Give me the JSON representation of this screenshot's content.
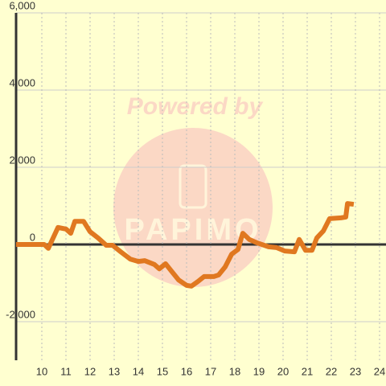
{
  "chart_data": {
    "type": "line",
    "x": [
      8.93,
      10.1,
      10.27,
      10.67,
      11.0,
      11.2,
      11.37,
      11.73,
      12.0,
      12.33,
      12.67,
      12.93,
      13.27,
      13.67,
      14.0,
      14.27,
      14.67,
      14.87,
      15.13,
      15.4,
      15.67,
      16.0,
      16.2,
      16.47,
      16.73,
      17.13,
      17.33,
      17.6,
      17.87,
      18.13,
      18.33,
      18.6,
      18.93,
      19.4,
      19.73,
      20.07,
      20.47,
      20.67,
      20.93,
      21.2,
      21.4,
      21.67,
      21.93,
      22.4,
      22.6,
      22.67,
      22.93
    ],
    "series": [
      {
        "color": "#e07820",
        "values": [
          0,
          0,
          -100,
          440,
          400,
          290,
          600,
          600,
          330,
          170,
          -20,
          -20,
          -190,
          -380,
          -440,
          -420,
          -520,
          -630,
          -500,
          -710,
          -920,
          -1060,
          -1080,
          -960,
          -830,
          -830,
          -790,
          -580,
          -250,
          -130,
          290,
          130,
          40,
          -60,
          -80,
          -170,
          -190,
          130,
          -150,
          -150,
          170,
          350,
          670,
          690,
          710,
          1060,
          1040
        ]
      }
    ],
    "xlim": [
      8.933,
      24.267
    ],
    "xticks": [
      10,
      11,
      12,
      13,
      14,
      15,
      16,
      17,
      18,
      19,
      20,
      21,
      22,
      23,
      24
    ],
    "ylim": [
      -3000,
      6000
    ],
    "yticks": [
      {
        "value": -2000,
        "label": "-2,000"
      },
      0,
      {
        "value": 2000,
        "label": "2,000"
      },
      {
        "value": 4000,
        "label": "4,000"
      },
      {
        "value": 6000,
        "label": "6,000"
      }
    ],
    "grid": true
  },
  "watermark": {
    "line1": "Powered by",
    "line2": "PAPIMO"
  }
}
